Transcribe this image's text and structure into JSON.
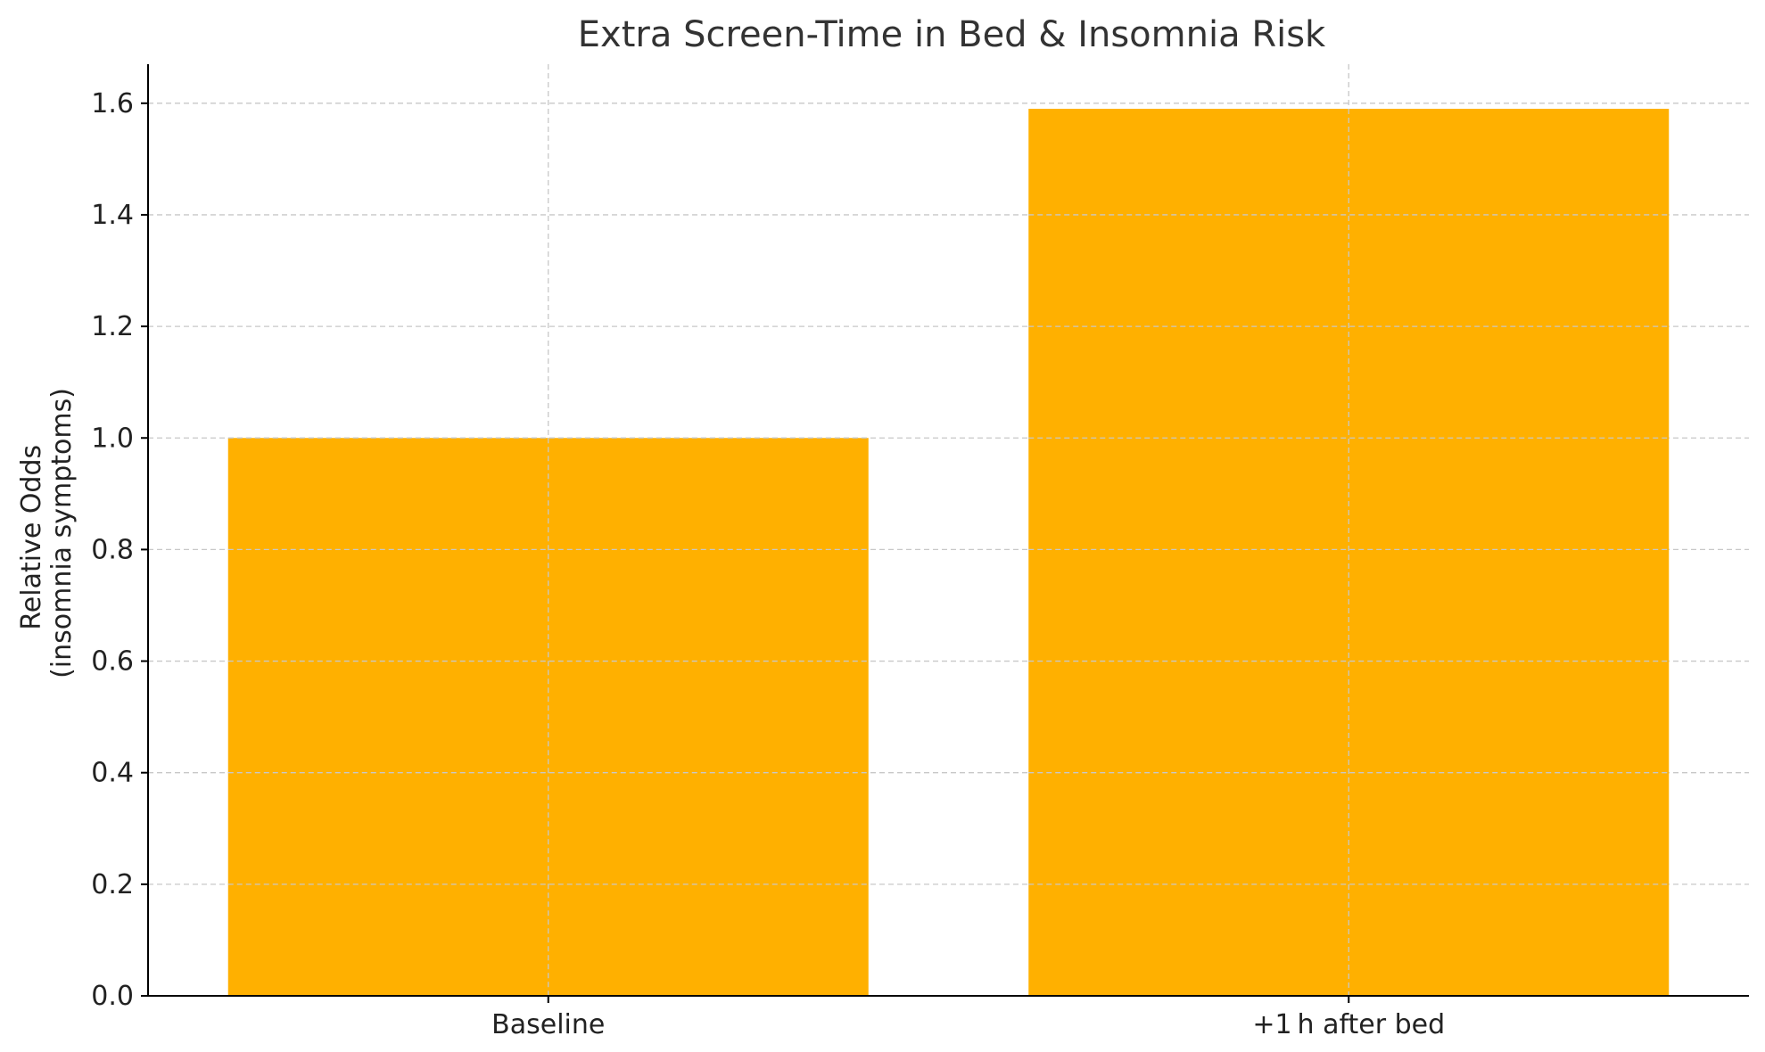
{
  "chart_data": {
    "type": "bar",
    "title": "Extra Screen-Time in Bed & Insomnia Risk",
    "xlabel": "",
    "ylabel_lines": [
      "Relative Odds",
      "(insomnia symptoms)"
    ],
    "categories": [
      "Baseline",
      "+1 h after bed"
    ],
    "values": [
      1.0,
      1.59
    ],
    "ylim": [
      0,
      1.67
    ],
    "yticks": [
      0.0,
      0.2,
      0.4,
      0.6,
      0.8,
      1.0,
      1.2,
      1.4,
      1.6
    ],
    "ytick_labels": [
      "0.0",
      "0.2",
      "0.4",
      "0.6",
      "0.8",
      "1.0",
      "1.2",
      "1.4",
      "1.6"
    ],
    "bar_color": "#FFB000",
    "grid": true,
    "legend": "none"
  }
}
